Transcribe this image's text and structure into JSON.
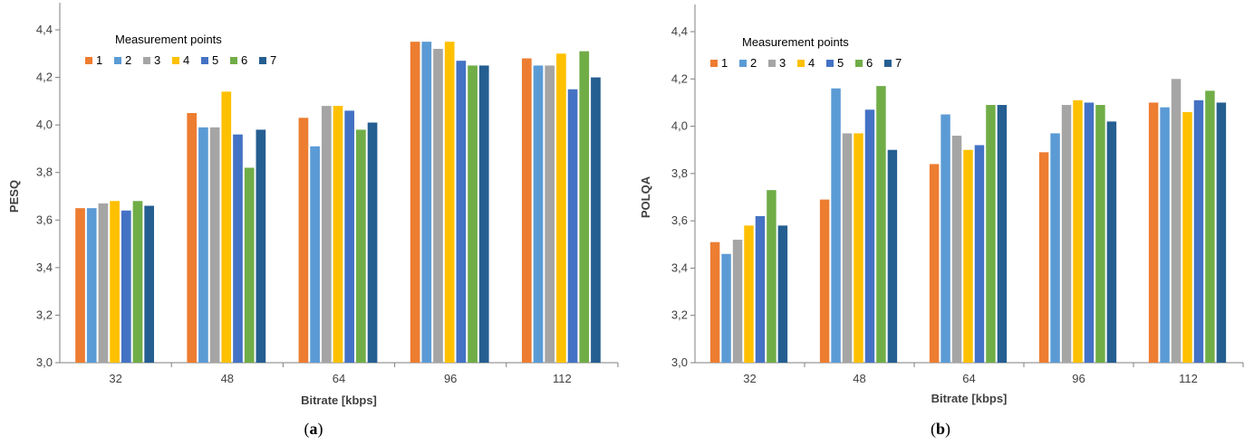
{
  "series_colors": [
    "#ED7D31",
    "#5B9BD5",
    "#A5A5A5",
    "#FFC000",
    "#4472C4",
    "#70AD47",
    "#255E91"
  ],
  "chart_data": [
    {
      "type": "bar",
      "caption": {
        "open": "(",
        "letter": "a",
        "close": ")"
      },
      "xlabel": "Bitrate  [kbps]",
      "ylabel": "PESQ",
      "legend_title": "Measurement  points",
      "legend_position": "top-left",
      "grid": false,
      "ylim": [
        3.0,
        4.4
      ],
      "yticks": [
        "3,0",
        "3,2",
        "3,4",
        "3,6",
        "3,8",
        "4,0",
        "4,2",
        "4,4"
      ],
      "categories": [
        "32",
        "48",
        "64",
        "96",
        "112"
      ],
      "series": [
        {
          "name": "1",
          "values": [
            3.65,
            4.05,
            4.03,
            4.35,
            4.28
          ]
        },
        {
          "name": "2",
          "values": [
            3.65,
            3.99,
            3.91,
            4.35,
            4.25
          ]
        },
        {
          "name": "3",
          "values": [
            3.67,
            3.99,
            4.08,
            4.32,
            4.25
          ]
        },
        {
          "name": "4",
          "values": [
            3.68,
            4.14,
            4.08,
            4.35,
            4.3
          ]
        },
        {
          "name": "5",
          "values": [
            3.64,
            3.96,
            4.06,
            4.27,
            4.15
          ]
        },
        {
          "name": "6",
          "values": [
            3.68,
            3.82,
            3.98,
            4.25,
            4.31
          ]
        },
        {
          "name": "7",
          "values": [
            3.66,
            3.98,
            4.01,
            4.25,
            4.2
          ]
        }
      ]
    },
    {
      "type": "bar",
      "caption": {
        "open": "(",
        "letter": "b",
        "close": ")"
      },
      "xlabel": "Bitrate [kbps]",
      "ylabel": "POLQA",
      "legend_title": "Measurement  points",
      "legend_position": "top-left",
      "grid": false,
      "ylim": [
        3.0,
        4.4
      ],
      "yticks": [
        "3,0",
        "3,2",
        "3,4",
        "3,6",
        "3,8",
        "4,0",
        "4,2",
        "4,4"
      ],
      "categories": [
        "32",
        "48",
        "64",
        "96",
        "112"
      ],
      "series": [
        {
          "name": "1",
          "values": [
            3.51,
            3.69,
            3.84,
            3.89,
            4.1
          ]
        },
        {
          "name": "2",
          "values": [
            3.46,
            4.16,
            4.05,
            3.97,
            4.08
          ]
        },
        {
          "name": "3",
          "values": [
            3.52,
            3.97,
            3.96,
            4.09,
            4.2
          ]
        },
        {
          "name": "4",
          "values": [
            3.58,
            3.97,
            3.9,
            4.11,
            4.06
          ]
        },
        {
          "name": "5",
          "values": [
            3.62,
            4.07,
            3.92,
            4.1,
            4.11
          ]
        },
        {
          "name": "6",
          "values": [
            3.73,
            4.17,
            4.09,
            4.09,
            4.15
          ]
        },
        {
          "name": "7",
          "values": [
            3.58,
            3.9,
            4.09,
            4.02,
            4.1
          ]
        }
      ]
    }
  ]
}
